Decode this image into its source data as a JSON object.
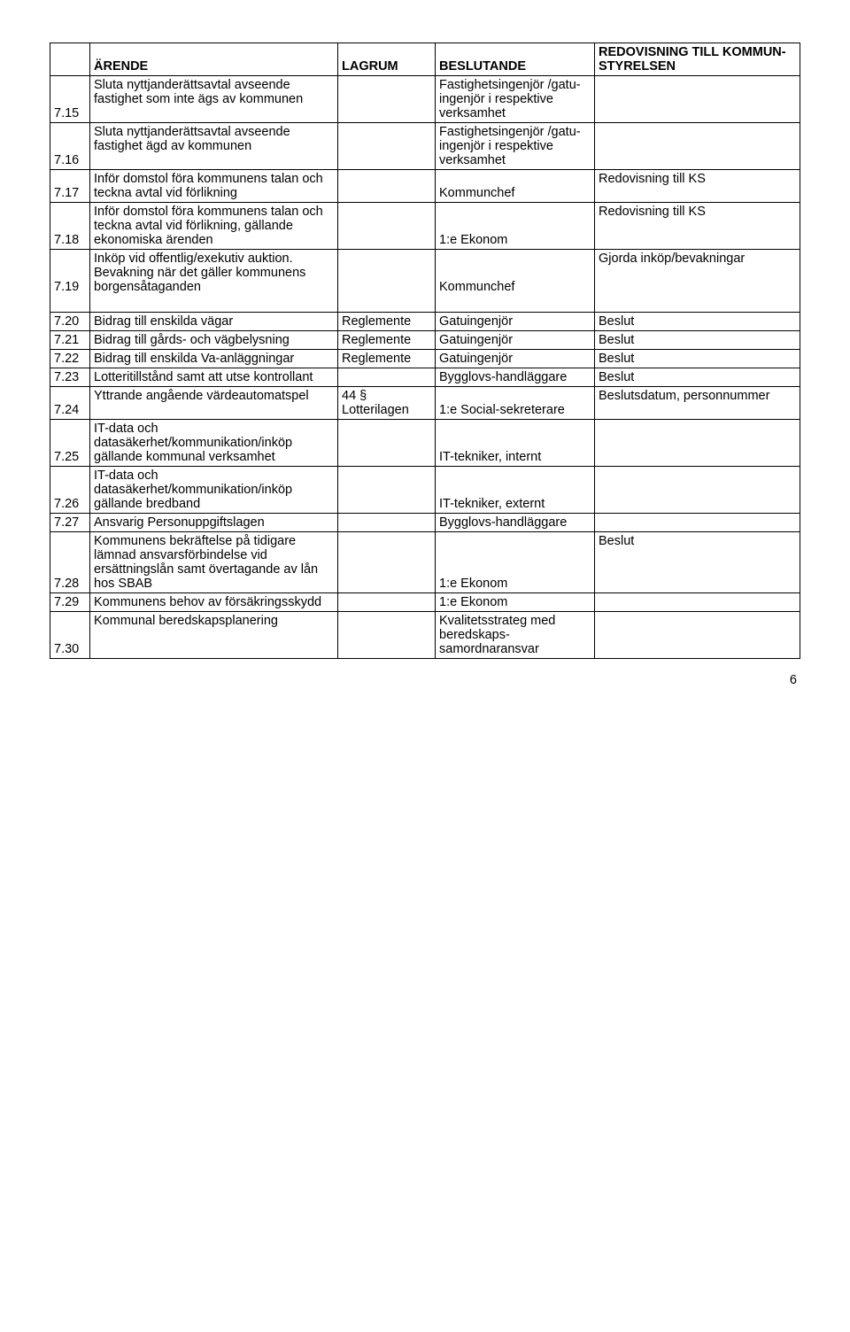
{
  "header": {
    "col1": "",
    "col2": "ÄRENDE",
    "col3": "LAGRUM",
    "col4": "BESLUTANDE",
    "col5": "REDOVISNING TILL KOMMUN-STYRELSEN"
  },
  "rows": [
    {
      "num": "7.15",
      "arende": "Sluta nyttjanderättsavtal avseende fastighet som inte ägs av kommunen",
      "lagrum": "",
      "besl": "Fastighetsingenjör /gatu-ingenjör i respektive verksamhet",
      "redov": ""
    },
    {
      "num": "7.16",
      "arende": "Sluta nyttjanderättsavtal avseende fastighet ägd av kommunen",
      "lagrum": "",
      "besl": "Fastighetsingenjör /gatu-ingenjör i respektive verksamhet",
      "redov": ""
    },
    {
      "num": "7.17",
      "arende": "Inför domstol föra kommunens talan och teckna avtal vid förlikning",
      "lagrum": "",
      "besl": "Kommunchef",
      "redov": "Redovisning till KS"
    },
    {
      "num": "7.18",
      "arende": "Inför domstol föra kommunens talan och teckna avtal vid förlikning, gällande ekonomiska ärenden",
      "lagrum": "",
      "besl": "1:e Ekonom",
      "redov": "Redovisning till KS"
    },
    {
      "num": "7.19",
      "arende": "Inköp vid offentlig/exekutiv auktion. Bevakning när det gäller kommunens borgensåtaganden",
      "lagrum": "",
      "besl": "Kommunchef",
      "redov": "Gjorda inköp/bevakningar"
    },
    {
      "num": "7.20",
      "arende": "Bidrag till enskilda vägar",
      "lagrum": "Reglemente",
      "besl": "Gatuingenjör",
      "redov": "Beslut"
    },
    {
      "num": "7.21",
      "arende": "Bidrag till gårds- och vägbelysning",
      "lagrum": "Reglemente",
      "besl": "Gatuingenjör",
      "redov": "Beslut"
    },
    {
      "num": "7.22",
      "arende": "Bidrag till enskilda Va-anläggningar",
      "lagrum": "Reglemente",
      "besl": "Gatuingenjör",
      "redov": "Beslut"
    },
    {
      "num": "7.23",
      "arende": "Lotteritillstånd samt att utse kontrollant",
      "lagrum": "",
      "besl": "Bygglovs-handläggare",
      "redov": "Beslut"
    },
    {
      "num": "7.24",
      "arende": "Yttrande angående värdeautomatspel",
      "lagrum": "44 § Lotterilagen",
      "besl": "1:e Social-sekreterare",
      "redov": "Beslutsdatum, personnummer"
    },
    {
      "num": "7.25",
      "arende": "IT-data och datasäkerhet/kommunikation/inköp gällande kommunal verksamhet",
      "lagrum": "",
      "besl": "IT-tekniker, internt",
      "redov": ""
    },
    {
      "num": "7.26",
      "arende": "IT-data och datasäkerhet/kommunikation/inköp gällande bredband",
      "lagrum": "",
      "besl": "IT-tekniker, externt",
      "redov": ""
    },
    {
      "num": "7.27",
      "arende": "Ansvarig Personuppgiftslagen",
      "lagrum": "",
      "besl": "Bygglovs-handläggare",
      "redov": ""
    },
    {
      "num": "7.28",
      "arende": "Kommunens bekräftelse på tidigare lämnad ansvarsförbindelse vid ersättningslån samt övertagande av lån hos SBAB",
      "lagrum": "",
      "besl": "1:e Ekonom",
      "redov": "Beslut"
    },
    {
      "num": "7.29",
      "arende": "Kommunens behov av försäkringsskydd",
      "lagrum": "",
      "besl": "1:e Ekonom",
      "redov": ""
    },
    {
      "num": "7.30",
      "arende": "Kommunal beredskapsplanering",
      "lagrum": "",
      "besl": "Kvalitetsstrateg med beredskaps-samordnaransvar",
      "redov": ""
    }
  ],
  "pageNumber": "6",
  "style": {
    "font_family": "Arial",
    "font_size_pt": 11,
    "border_color": "#000000",
    "background_color": "#ffffff",
    "text_color": "#000000",
    "bottom_gap_after_rows": [
      4,
      18
    ]
  }
}
